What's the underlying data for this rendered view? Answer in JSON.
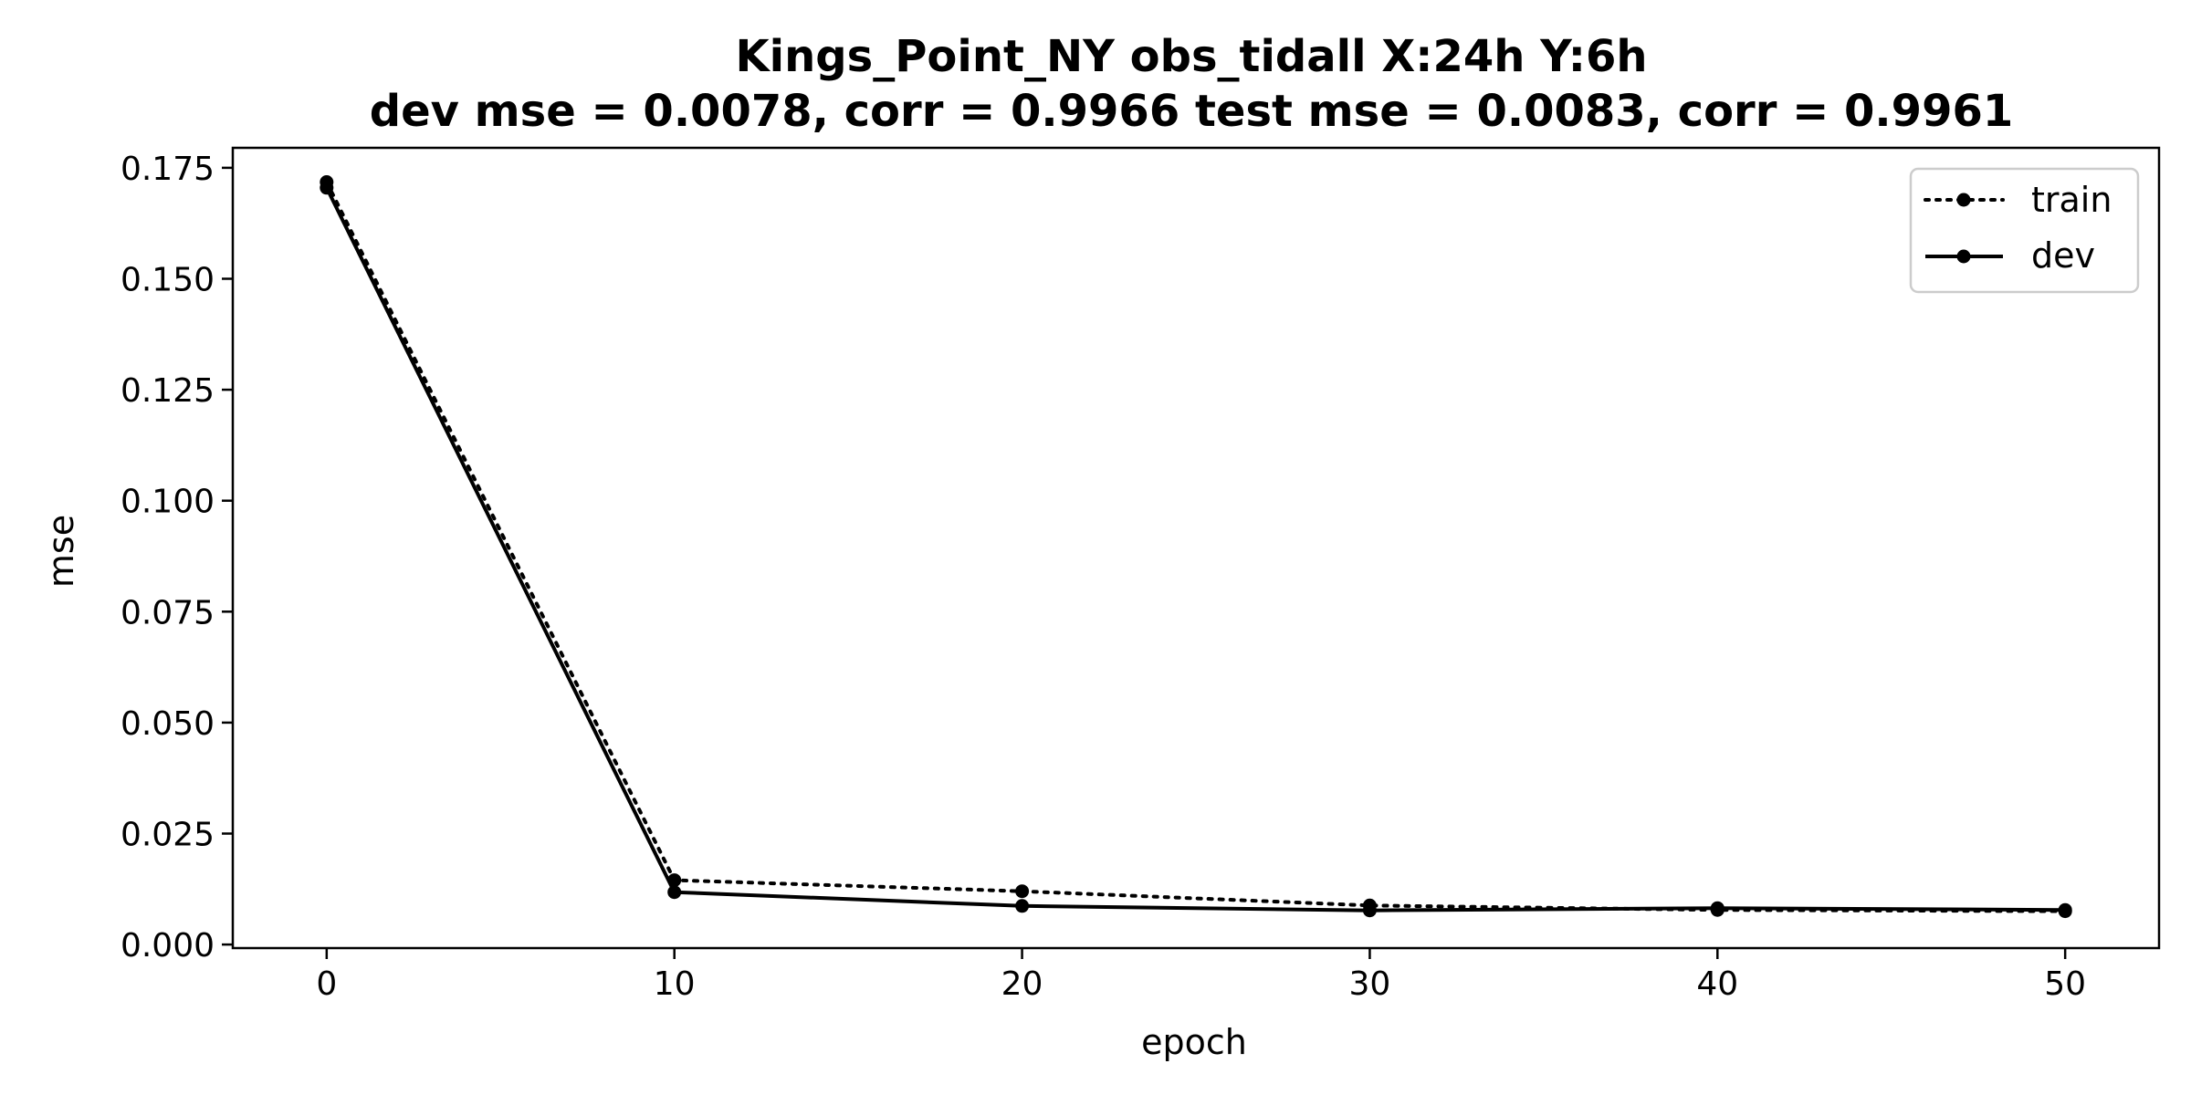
{
  "chart_data": {
    "type": "line",
    "title": "Kings_Point_NY   obs_tidall   X:24h   Y:6h",
    "subtitle": "dev mse = 0.0078, corr = 0.9966   test mse = 0.0083, corr = 0.9961",
    "xlabel": "epoch",
    "ylabel": "mse",
    "xlim": [
      -2.7,
      52.7
    ],
    "ylim": [
      -0.0008,
      0.1795
    ],
    "x": [
      0,
      10,
      20,
      30,
      40,
      50
    ],
    "xticks": [
      0,
      10,
      20,
      30,
      40,
      50
    ],
    "xtick_labels": [
      "0",
      "10",
      "20",
      "30",
      "40",
      "50"
    ],
    "yticks": [
      0.0,
      0.025,
      0.05,
      0.075,
      0.1,
      0.125,
      0.15,
      0.175
    ],
    "ytick_labels": [
      "0.000",
      "0.025",
      "0.050",
      "0.075",
      "0.100",
      "0.125",
      "0.150",
      "0.175"
    ],
    "grid": false,
    "legend_position": "top-right",
    "series": [
      {
        "name": "train",
        "style": "dotted",
        "color": "#000000",
        "values": [
          0.1718,
          0.0145,
          0.012,
          0.0088,
          0.0078,
          0.0075
        ]
      },
      {
        "name": "dev",
        "style": "solid",
        "color": "#000000",
        "values": [
          0.1705,
          0.0118,
          0.0087,
          0.0077,
          0.0082,
          0.0078
        ]
      }
    ]
  }
}
